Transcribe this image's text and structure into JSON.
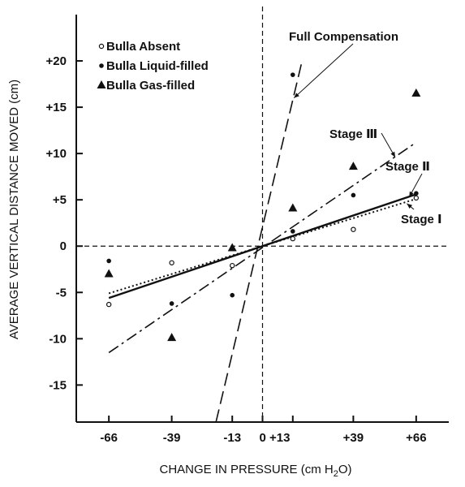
{
  "chart_data": {
    "type": "scatter",
    "xlabel": "CHANGE IN PRESSURE (cm H",
    "xlabel_sub": "2",
    "xlabel_tail": "O)",
    "ylabel": "AVERAGE VERTICAL DISTANCE MOVED (cm)",
    "xlim": [
      -80,
      80
    ],
    "ylim": [
      -19,
      25
    ],
    "x_ticks": [
      {
        "value": -66,
        "label": "-66"
      },
      {
        "value": -39,
        "label": "-39"
      },
      {
        "value": -13,
        "label": "-13"
      },
      {
        "value": 0,
        "label": "0 +13"
      },
      {
        "value": 39,
        "label": "+39"
      },
      {
        "value": 66,
        "label": "+66"
      }
    ],
    "x_tick_marks": [
      -66,
      -39,
      -13,
      0,
      13,
      39,
      66
    ],
    "y_ticks": [
      {
        "value": 20,
        "label": "+20"
      },
      {
        "value": 15,
        "label": "+15"
      },
      {
        "value": 10,
        "label": "+10"
      },
      {
        "value": 5,
        "label": "+5"
      },
      {
        "value": 0,
        "label": "0"
      },
      {
        "value": -5,
        "label": "-5"
      },
      {
        "value": -10,
        "label": "-10"
      },
      {
        "value": -15,
        "label": "-15"
      }
    ],
    "grid": false,
    "legend_position": "top-left",
    "series": [
      {
        "name": "Bulla Absent",
        "marker": "open-circle",
        "points": [
          [
            -66,
            -6.3
          ],
          [
            -39,
            -1.8
          ],
          [
            -13,
            -2.1
          ],
          [
            13,
            0.8
          ],
          [
            39,
            1.8
          ],
          [
            66,
            5.2
          ]
        ]
      },
      {
        "name": "Bulla Liquid-filled",
        "marker": "filled-circle",
        "points": [
          [
            -66,
            -1.6
          ],
          [
            -39,
            -6.2
          ],
          [
            -13,
            -5.3
          ],
          [
            13,
            18.5
          ],
          [
            13,
            1.6
          ],
          [
            39,
            5.5
          ],
          [
            66,
            5.7
          ]
        ]
      },
      {
        "name": "Bulla Gas-filled",
        "marker": "filled-triangle",
        "points": [
          [
            -66,
            -3.0
          ],
          [
            -39,
            -9.9
          ],
          [
            -13,
            -0.2
          ],
          [
            13,
            4.1
          ],
          [
            39,
            8.6
          ],
          [
            66,
            16.5
          ]
        ]
      }
    ],
    "lines": [
      {
        "label": "Full Compensation",
        "style": "dashed",
        "from": [
          -20,
          -19
        ],
        "to": [
          17,
          20
        ]
      },
      {
        "label": "Stage III",
        "label_display": "Stage Ⅲ",
        "style": "dashdot",
        "from": [
          -66,
          -11.5
        ],
        "to": [
          66,
          11.2
        ]
      },
      {
        "label": "Stage II",
        "label_display": "Stage Ⅱ",
        "style": "solid",
        "from": [
          -66,
          -5.6
        ],
        "to": [
          66,
          5.6
        ]
      },
      {
        "label": "Stage I",
        "label_display": "Stage Ⅰ",
        "style": "dotted",
        "from": [
          -66,
          -5.1
        ],
        "to": [
          66,
          5.1
        ]
      }
    ]
  }
}
